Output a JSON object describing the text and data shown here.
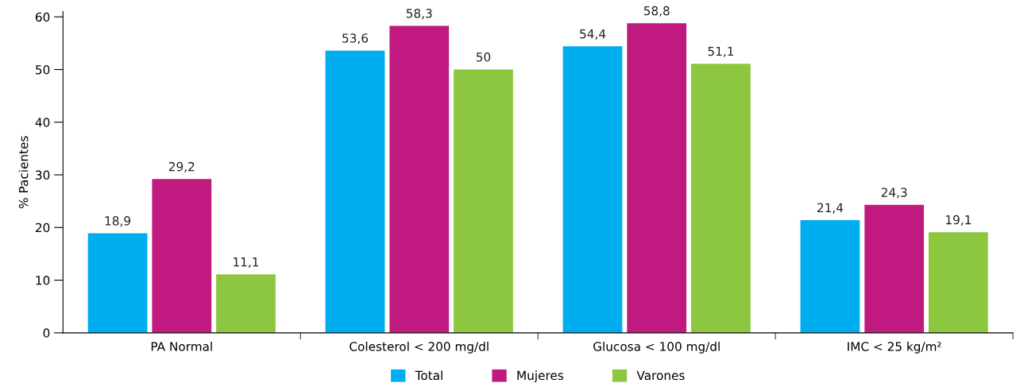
{
  "chart_data": {
    "type": "bar",
    "ylabel": "% Pacientes",
    "categories": [
      "PA Normal",
      "Colesterol < 200 mg/dl",
      "Glucosa < 100 mg/dl",
      "IMC < 25 kg/m²"
    ],
    "series": [
      {
        "name": "Total",
        "color": "#00aeef",
        "values": [
          18.9,
          53.6,
          54.4,
          21.4
        ],
        "value_labels": [
          "18,9",
          "53,6",
          "54,4",
          "21,4"
        ]
      },
      {
        "name": "Mujeres",
        "color": "#c0197f",
        "values": [
          29.2,
          58.3,
          58.8,
          24.3
        ],
        "value_labels": [
          "29,2",
          "58,3",
          "58,8",
          "24,3"
        ]
      },
      {
        "name": "Varones",
        "color": "#8dc63f",
        "values": [
          11.1,
          50,
          51.1,
          19.1
        ],
        "value_labels": [
          "11,1",
          "50",
          "51,1",
          "19,1"
        ]
      }
    ],
    "ylim": [
      0,
      61
    ],
    "yticks": [
      0,
      10,
      20,
      30,
      40,
      50,
      60
    ],
    "grid": false,
    "legend": "bottom"
  }
}
